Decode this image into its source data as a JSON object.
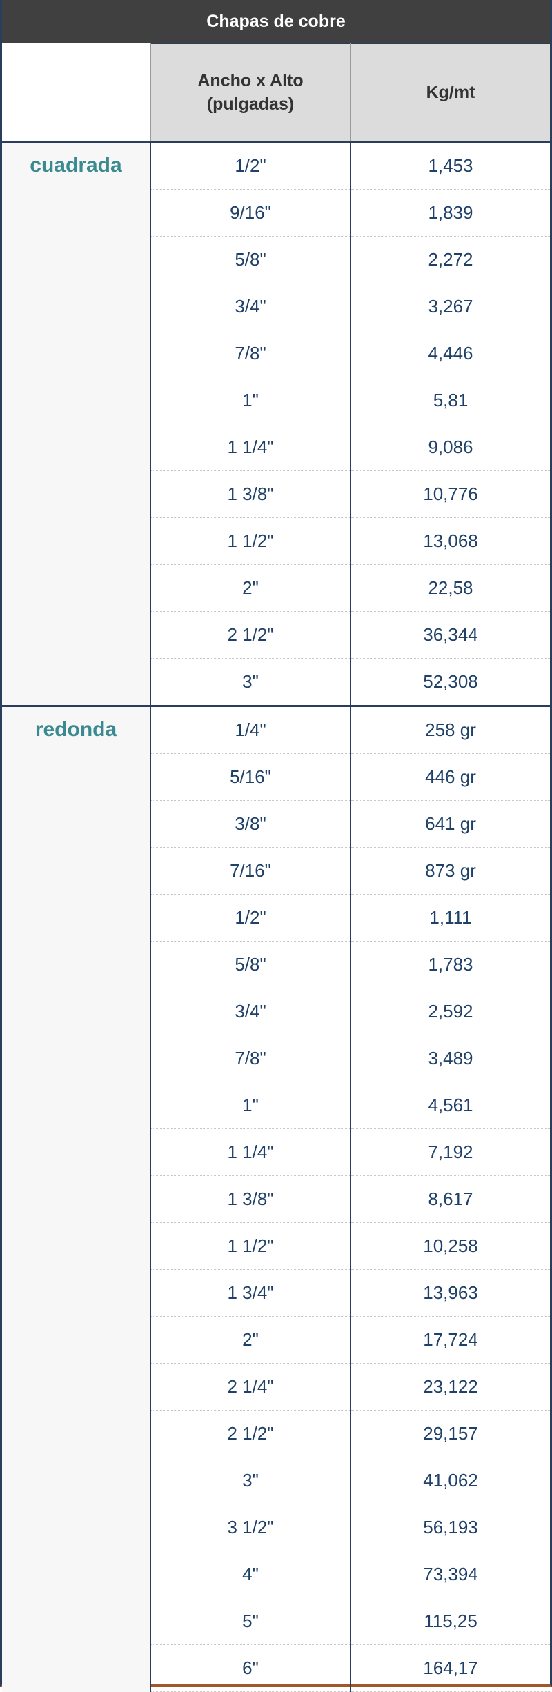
{
  "title": "Chapas de cobre",
  "headers": {
    "size": "Ancho x Alto\n(pulgadas)",
    "size_line1": "Ancho x Alto",
    "size_line2": "(pulgadas)",
    "weight": "Kg/mt"
  },
  "groups": [
    {
      "label": "cuadrada",
      "rows": [
        [
          "1/2\"",
          "1,453"
        ],
        [
          "9/16\"",
          "1,839"
        ],
        [
          "5/8\"",
          "2,272"
        ],
        [
          "3/4\"",
          "3,267"
        ],
        [
          "7/8\"",
          "4,446"
        ],
        [
          "1\"",
          "5,81"
        ],
        [
          "1 1/4\"",
          "9,086"
        ],
        [
          "1 3/8\"",
          "10,776"
        ],
        [
          "1 1/2\"",
          "13,068"
        ],
        [
          "2\"",
          "22,58"
        ],
        [
          "2 1/2\"",
          "36,344"
        ],
        [
          "3\"",
          "52,308"
        ]
      ]
    },
    {
      "label": "redonda",
      "rows": [
        [
          "1/4\"",
          "258 gr"
        ],
        [
          "5/16\"",
          "446 gr"
        ],
        [
          "3/8\"",
          "641 gr"
        ],
        [
          "7/16\"",
          "873 gr"
        ],
        [
          "1/2\"",
          "1,111"
        ],
        [
          "5/8\"",
          "1,783"
        ],
        [
          "3/4\"",
          "2,592"
        ],
        [
          "7/8\"",
          "3,489"
        ],
        [
          "1\"",
          "4,561"
        ],
        [
          "1 1/4\"",
          "7,192"
        ],
        [
          "1 3/8\"",
          "8,617"
        ],
        [
          "1 1/2\"",
          "10,258"
        ],
        [
          "1 3/4\"",
          "13,963"
        ],
        [
          "2\"",
          "17,724"
        ],
        [
          "2 1/4\"",
          "23,122"
        ],
        [
          "2 1/2\"",
          "29,157"
        ],
        [
          "3\"",
          "41,062"
        ],
        [
          "3 1/2\"",
          "56,193"
        ],
        [
          "4\"",
          "73,394"
        ],
        [
          "5\"",
          "115,25"
        ],
        [
          "6\"",
          "164,17"
        ]
      ]
    }
  ],
  "colors": {
    "title_bg": "#404040",
    "group_label": "#3a8a8f",
    "cell_text": "#1f4068",
    "header_bg": "#dcdcdc"
  }
}
